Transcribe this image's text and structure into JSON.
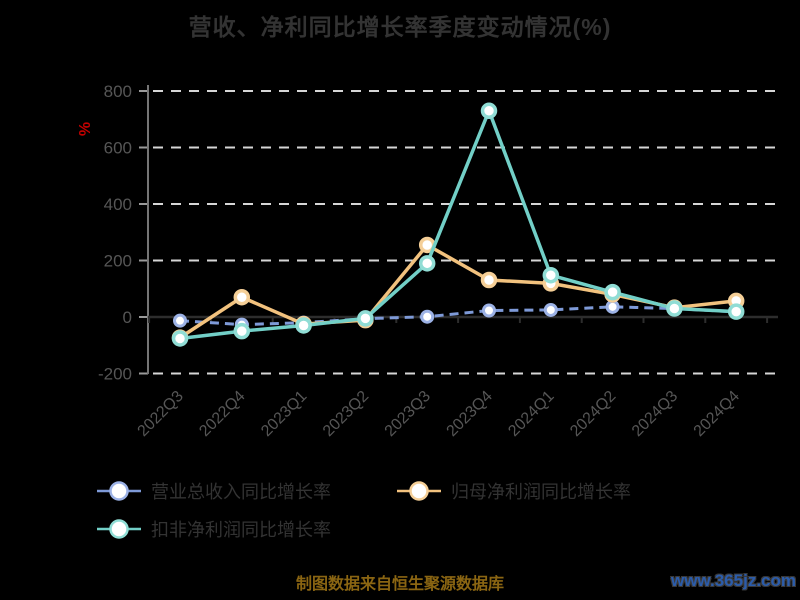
{
  "page": {
    "title": "营收、净利同比增长率季度变动情况(%)",
    "y_axis_unit": "%",
    "footer_source": "制图数据来自恒生聚源数据库",
    "watermark": "www.365jz.com"
  },
  "colors": {
    "background": "#000000",
    "title": "#333333",
    "axis_label": "#565656",
    "grid_line": "#d6d6d6",
    "y_axis_line": "#757575",
    "tick_mark": "#9a9a9a",
    "zero_axis_line": "#2d2d2d",
    "unit_label": "#c40000",
    "legend_text": "#333333",
    "footer_source": "#8a6512",
    "watermark": "#2b5cab"
  },
  "chart_data": {
    "type": "line",
    "title": "营收、净利同比增长率季度变动情况(%)",
    "xlabel": "",
    "ylabel": "%",
    "ylim": [
      -200,
      800
    ],
    "y_ticks": [
      800,
      600,
      400,
      200,
      0,
      -200
    ],
    "grid": "horizontal dashed white lines on black",
    "legend_position": "bottom-left, two rows",
    "x_label_rotation": 45,
    "categories": [
      "2022Q3",
      "2022Q4",
      "2023Q1",
      "2023Q2",
      "2023Q3",
      "2023Q4",
      "2024Q1",
      "2024Q2",
      "2024Q3",
      "2024Q4"
    ],
    "series": [
      {
        "name": "营业总收入同比增长率",
        "line_style": "dashed",
        "color": "#7e9ad8",
        "marker_ring": "#9cb2e6",
        "marker_fill": "#ffffff",
        "values": [
          -13,
          -27,
          -20,
          -6,
          1,
          23,
          25,
          36,
          30,
          18
        ]
      },
      {
        "name": "归母净利润同比增长率",
        "line_style": "solid",
        "color": "#f2c27e",
        "marker_ring": "#f5cf97",
        "marker_fill": "#ffffff",
        "values": [
          -73,
          70,
          -25,
          -11,
          255,
          131,
          119,
          80,
          33,
          57
        ]
      },
      {
        "name": "扣非净利润同比增长率",
        "line_style": "solid",
        "color": "#72cfc7",
        "marker_ring": "#90ddd5",
        "marker_fill": "#ffffff",
        "values": [
          -76,
          -50,
          -30,
          -5,
          190,
          730,
          148,
          88,
          30,
          19
        ]
      }
    ]
  }
}
